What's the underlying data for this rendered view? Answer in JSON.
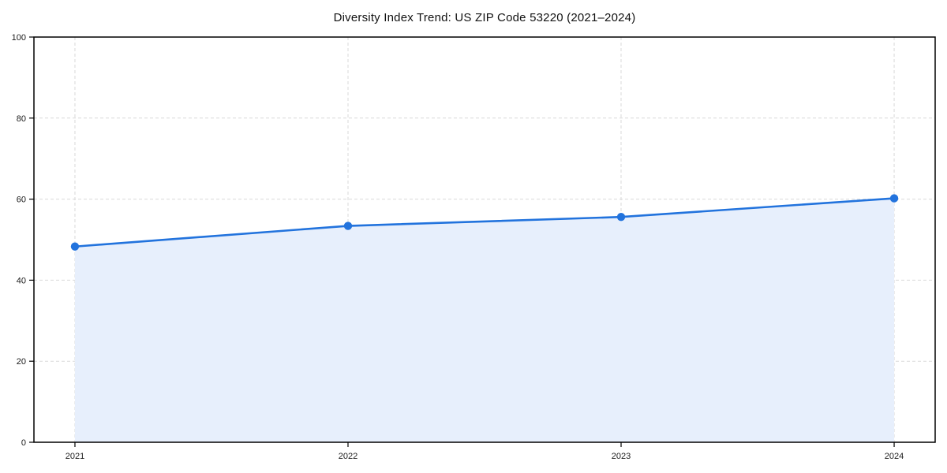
{
  "chart_data": {
    "type": "area",
    "title": "Diversity Index Trend: US ZIP Code 53220 (2021–2024)",
    "series_name": "Diversity Index",
    "categories": [
      "2021",
      "2022",
      "2023",
      "2024"
    ],
    "values": [
      48.3,
      53.4,
      55.6,
      60.2
    ],
    "xlabel": "",
    "ylabel": "",
    "ylim": [
      0,
      100
    ],
    "yticks": [
      0,
      20,
      40,
      60,
      80,
      100
    ],
    "grid": true,
    "grid_style": "dashed",
    "legend": "none",
    "marker": "circle",
    "colors": {
      "line": "#2273dd",
      "fill": "#e7effc",
      "marker": "#2273dd",
      "grid": "#d9d9d9",
      "spine": "#000000",
      "tick_text": "#1a1a1a",
      "title_text": "#111111",
      "background": "#ffffff"
    }
  }
}
